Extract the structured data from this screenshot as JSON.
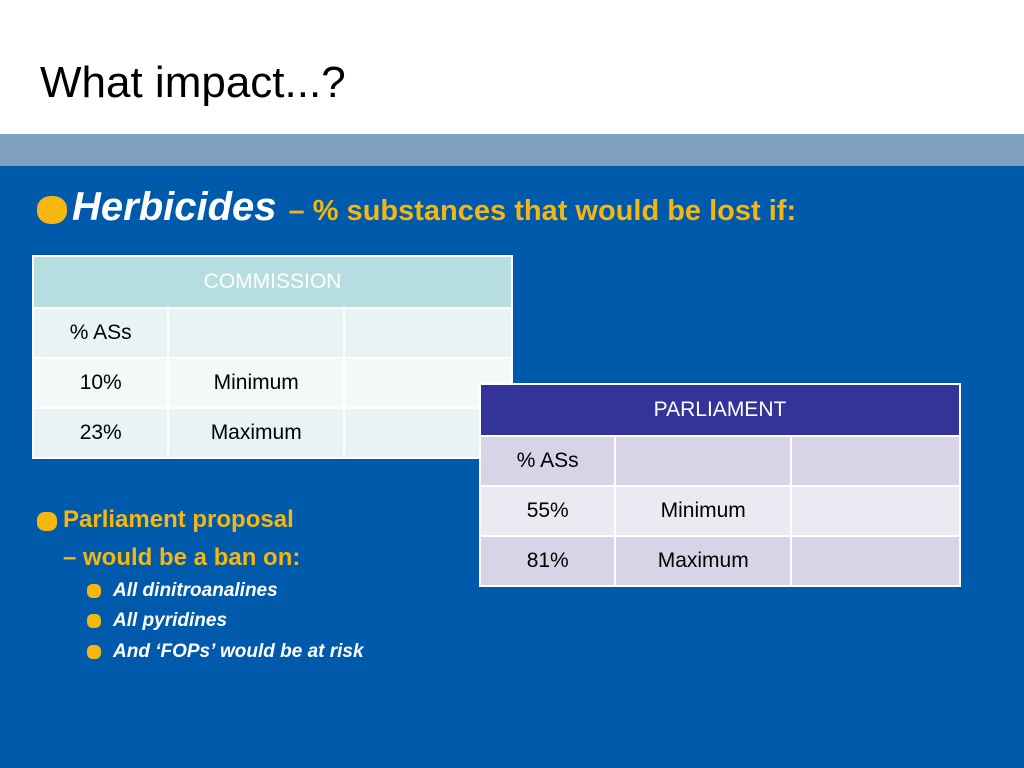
{
  "slide": {
    "title": "What impact...?",
    "heading_main": "Herbicides",
    "heading_sub": "– % substances that would be lost if:"
  },
  "commission_table": {
    "header": "COMMISSION",
    "rows": [
      [
        "% ASs",
        "",
        ""
      ],
      [
        "10%",
        "Minimum",
        ""
      ],
      [
        "23%",
        "Maximum",
        ""
      ]
    ]
  },
  "parliament_table": {
    "header": "PARLIAMENT",
    "rows": [
      [
        "% ASs",
        "",
        ""
      ],
      [
        "55%",
        "Minimum",
        ""
      ],
      [
        "81%",
        "Maximum",
        ""
      ]
    ]
  },
  "proposal": {
    "line1": "Parliament proposal",
    "line2": "– would be a ban on:",
    "items": [
      "All dinitroanalines",
      "All pyridines",
      "And ‘FOPs’  would be at risk"
    ]
  },
  "colors": {
    "background": "#005aab",
    "band": "#7f9fbf",
    "accent": "#f5b70f",
    "commission_header": "#b6dde0",
    "parliament_header": "#333399"
  },
  "icons": {
    "bullet": "rounded-square-bullet"
  }
}
